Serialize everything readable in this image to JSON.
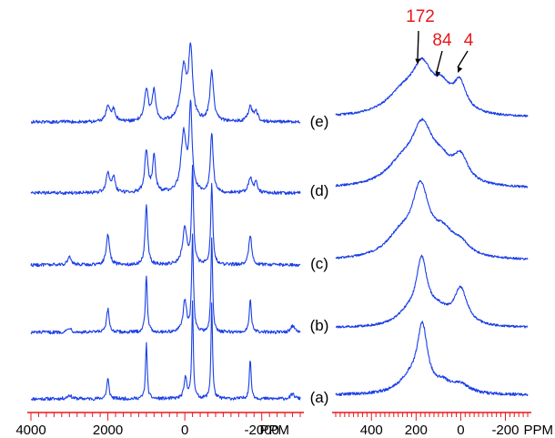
{
  "colors": {
    "trace": "#1a3ee6",
    "axis": "#e8171b",
    "annotation": "#e8171b",
    "text": "#000000"
  },
  "chart_data": [
    {
      "type": "line",
      "title": "",
      "xlabel": "PPM",
      "ylabel": "",
      "x_reversed": true,
      "xlim": [
        4000,
        -3000
      ],
      "x_ticks": [
        {
          "value": 4000,
          "label": "4000"
        },
        {
          "value": 2000,
          "label": "2000"
        },
        {
          "value": 0,
          "label": "0"
        },
        {
          "value": -2000,
          "label": "-2000"
        }
      ],
      "minor_tick_step": 200,
      "grid": false,
      "legend": "none",
      "series": [
        {
          "name": "(a)",
          "base_ppm": 0,
          "noise": 0.035,
          "peaks": [
            [
              -200,
              1.0,
              24
            ],
            [
              -20,
              0.22,
              45
            ],
            [
              -700,
              1.0,
              24
            ],
            [
              1000,
              0.6,
              25
            ],
            [
              2000,
              0.21,
              35
            ],
            [
              -1700,
              0.42,
              28
            ],
            [
              3000,
              0.04,
              60
            ],
            [
              -2800,
              0.05,
              60
            ]
          ]
        },
        {
          "name": "(b)",
          "base_ppm": 0,
          "noise": 0.035,
          "peaks": [
            [
              -200,
              1.0,
              28
            ],
            [
              0,
              0.33,
              55
            ],
            [
              -700,
              1.0,
              25
            ],
            [
              1000,
              0.6,
              30
            ],
            [
              2000,
              0.24,
              40
            ],
            [
              -1700,
              0.35,
              32
            ],
            [
              3000,
              0.05,
              60
            ],
            [
              -2800,
              0.07,
              60
            ]
          ]
        },
        {
          "name": "(c)",
          "base_ppm": 0,
          "noise": 0.035,
          "peaks": [
            [
              -200,
              1.0,
              30
            ],
            [
              0,
              0.38,
              70
            ],
            [
              -700,
              0.84,
              32
            ],
            [
              1000,
              0.64,
              38
            ],
            [
              2000,
              0.32,
              50
            ],
            [
              -1700,
              0.32,
              45
            ],
            [
              3000,
              0.08,
              60
            ]
          ]
        },
        {
          "name": "(d)",
          "base_ppm": 0,
          "noise": 0.035,
          "peaks": [
            [
              -150,
              0.88,
              45
            ],
            [
              30,
              0.62,
              80
            ],
            [
              -700,
              0.62,
              42
            ],
            [
              1000,
              0.44,
              50
            ],
            [
              800,
              0.38,
              45
            ],
            [
              2000,
              0.21,
              55
            ],
            [
              1850,
              0.16,
              45
            ],
            [
              -1700,
              0.16,
              55
            ],
            [
              -1850,
              0.1,
              45
            ]
          ]
        },
        {
          "name": "(e)",
          "base_ppm": 0,
          "noise": 0.035,
          "peaks": [
            [
              -150,
              0.72,
              60
            ],
            [
              30,
              0.55,
              90
            ],
            [
              -700,
              0.52,
              55
            ],
            [
              1000,
              0.34,
              60
            ],
            [
              800,
              0.33,
              50
            ],
            [
              2000,
              0.15,
              65
            ],
            [
              1850,
              0.12,
              55
            ],
            [
              -1700,
              0.15,
              65
            ],
            [
              -1850,
              0.1,
              55
            ]
          ]
        }
      ]
    },
    {
      "type": "line",
      "title": "",
      "xlabel": "PPM",
      "ylabel": "",
      "x_reversed": true,
      "xlim": [
        560,
        -300
      ],
      "x_ticks": [
        {
          "value": 400,
          "label": "400"
        },
        {
          "value": 200,
          "label": "200"
        },
        {
          "value": 0,
          "label": "0"
        },
        {
          "value": -200,
          "label": "-200"
        }
      ],
      "minor_tick_step": 20,
      "grid": false,
      "legend": "none",
      "series": [
        {
          "name": "(a)",
          "base": 0.05,
          "noise": 0.04,
          "peaks": [
            [
              172,
              0.9,
              28
            ],
            [
              230,
              0.2,
              60
            ],
            [
              80,
              0.12,
              40
            ],
            [
              0,
              0.12,
              50
            ]
          ]
        },
        {
          "name": "(b)",
          "base": 0.06,
          "noise": 0.03,
          "peaks": [
            [
              175,
              0.85,
              30
            ],
            [
              240,
              0.15,
              60
            ],
            [
              100,
              0.2,
              60
            ],
            [
              0,
              0.5,
              35
            ]
          ]
        },
        {
          "name": "(c)",
          "base": 0.06,
          "noise": 0.03,
          "peaks": [
            [
              180,
              0.9,
              45
            ],
            [
              270,
              0.3,
              80
            ],
            [
              80,
              0.3,
              60
            ],
            [
              0,
              0.15,
              50
            ]
          ]
        },
        {
          "name": "(d)",
          "base": 0.06,
          "noise": 0.03,
          "peaks": [
            [
              172,
              0.72,
              55
            ],
            [
              260,
              0.3,
              90
            ],
            [
              90,
              0.25,
              60
            ],
            [
              0,
              0.35,
              40
            ]
          ]
        },
        {
          "name": "(e)",
          "base": 0.06,
          "noise": 0.03,
          "peaks": [
            [
              172,
              0.6,
              55
            ],
            [
              260,
              0.3,
              90
            ],
            [
              84,
              0.3,
              45
            ],
            [
              4,
              0.4,
              35
            ]
          ]
        }
      ],
      "annotations": [
        {
          "label": "172",
          "x": 172
        },
        {
          "label": "84",
          "x": 84
        },
        {
          "label": "4",
          "x": 4
        }
      ]
    }
  ]
}
